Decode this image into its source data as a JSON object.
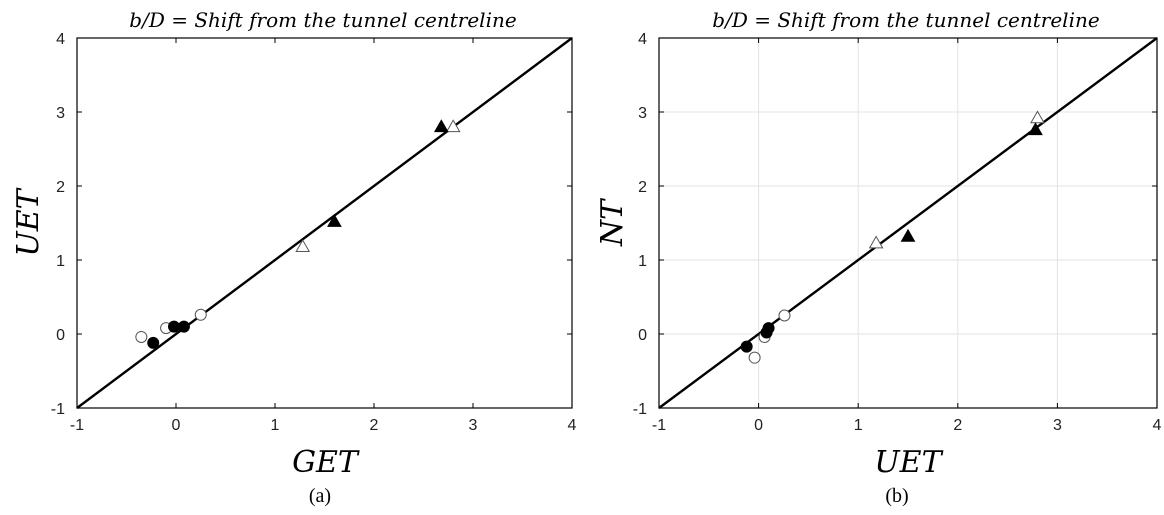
{
  "chart_data": [
    {
      "type": "scatter",
      "title": "b/D = Shift from the tunnel centreline",
      "xlabel": "GET",
      "ylabel": "UET",
      "caption": "(a)",
      "xlim": [
        -1,
        4
      ],
      "ylim": [
        -1,
        4
      ],
      "xticks": [
        "-1",
        "0",
        "1",
        "2",
        "3",
        "4"
      ],
      "yticks": [
        "-1",
        "0",
        "1",
        "2",
        "3",
        "4"
      ],
      "grid": false,
      "reference_line": {
        "x": [
          -1,
          4
        ],
        "y": [
          -1,
          4
        ]
      },
      "series": [
        {
          "marker": "circle-open",
          "points": [
            [
              -0.35,
              -0.04
            ],
            [
              -0.1,
              0.08
            ],
            [
              0.25,
              0.26
            ]
          ]
        },
        {
          "marker": "circle-filled",
          "points": [
            [
              -0.23,
              -0.12
            ],
            [
              -0.02,
              0.1
            ],
            [
              0.08,
              0.1
            ]
          ]
        },
        {
          "marker": "triangle-open",
          "points": [
            [
              1.28,
              1.18
            ],
            [
              2.8,
              2.8
            ]
          ]
        },
        {
          "marker": "triangle-filled",
          "points": [
            [
              1.6,
              1.52
            ],
            [
              2.68,
              2.8
            ]
          ]
        }
      ]
    },
    {
      "type": "scatter",
      "title": "b/D = Shift from the tunnel centreline",
      "xlabel": "UET",
      "ylabel": "NT",
      "caption": "(b)",
      "xlim": [
        -1,
        4
      ],
      "ylim": [
        -1,
        4
      ],
      "xticks": [
        "-1",
        "0",
        "1",
        "2",
        "3",
        "4"
      ],
      "yticks": [
        "-1",
        "0",
        "1",
        "2",
        "3",
        "4"
      ],
      "grid": true,
      "reference_line": {
        "x": [
          -1,
          4
        ],
        "y": [
          -1,
          4
        ]
      },
      "series": [
        {
          "marker": "circle-open",
          "points": [
            [
              -0.04,
              -0.32
            ],
            [
              0.06,
              -0.04
            ],
            [
              0.26,
              0.25
            ]
          ]
        },
        {
          "marker": "circle-filled",
          "points": [
            [
              -0.12,
              -0.17
            ],
            [
              0.08,
              0.02
            ],
            [
              0.1,
              0.08
            ]
          ]
        },
        {
          "marker": "triangle-open",
          "points": [
            [
              1.18,
              1.23
            ],
            [
              2.8,
              2.92
            ]
          ]
        },
        {
          "marker": "triangle-filled",
          "points": [
            [
              1.5,
              1.32
            ],
            [
              2.78,
              2.76
            ]
          ]
        }
      ]
    }
  ]
}
